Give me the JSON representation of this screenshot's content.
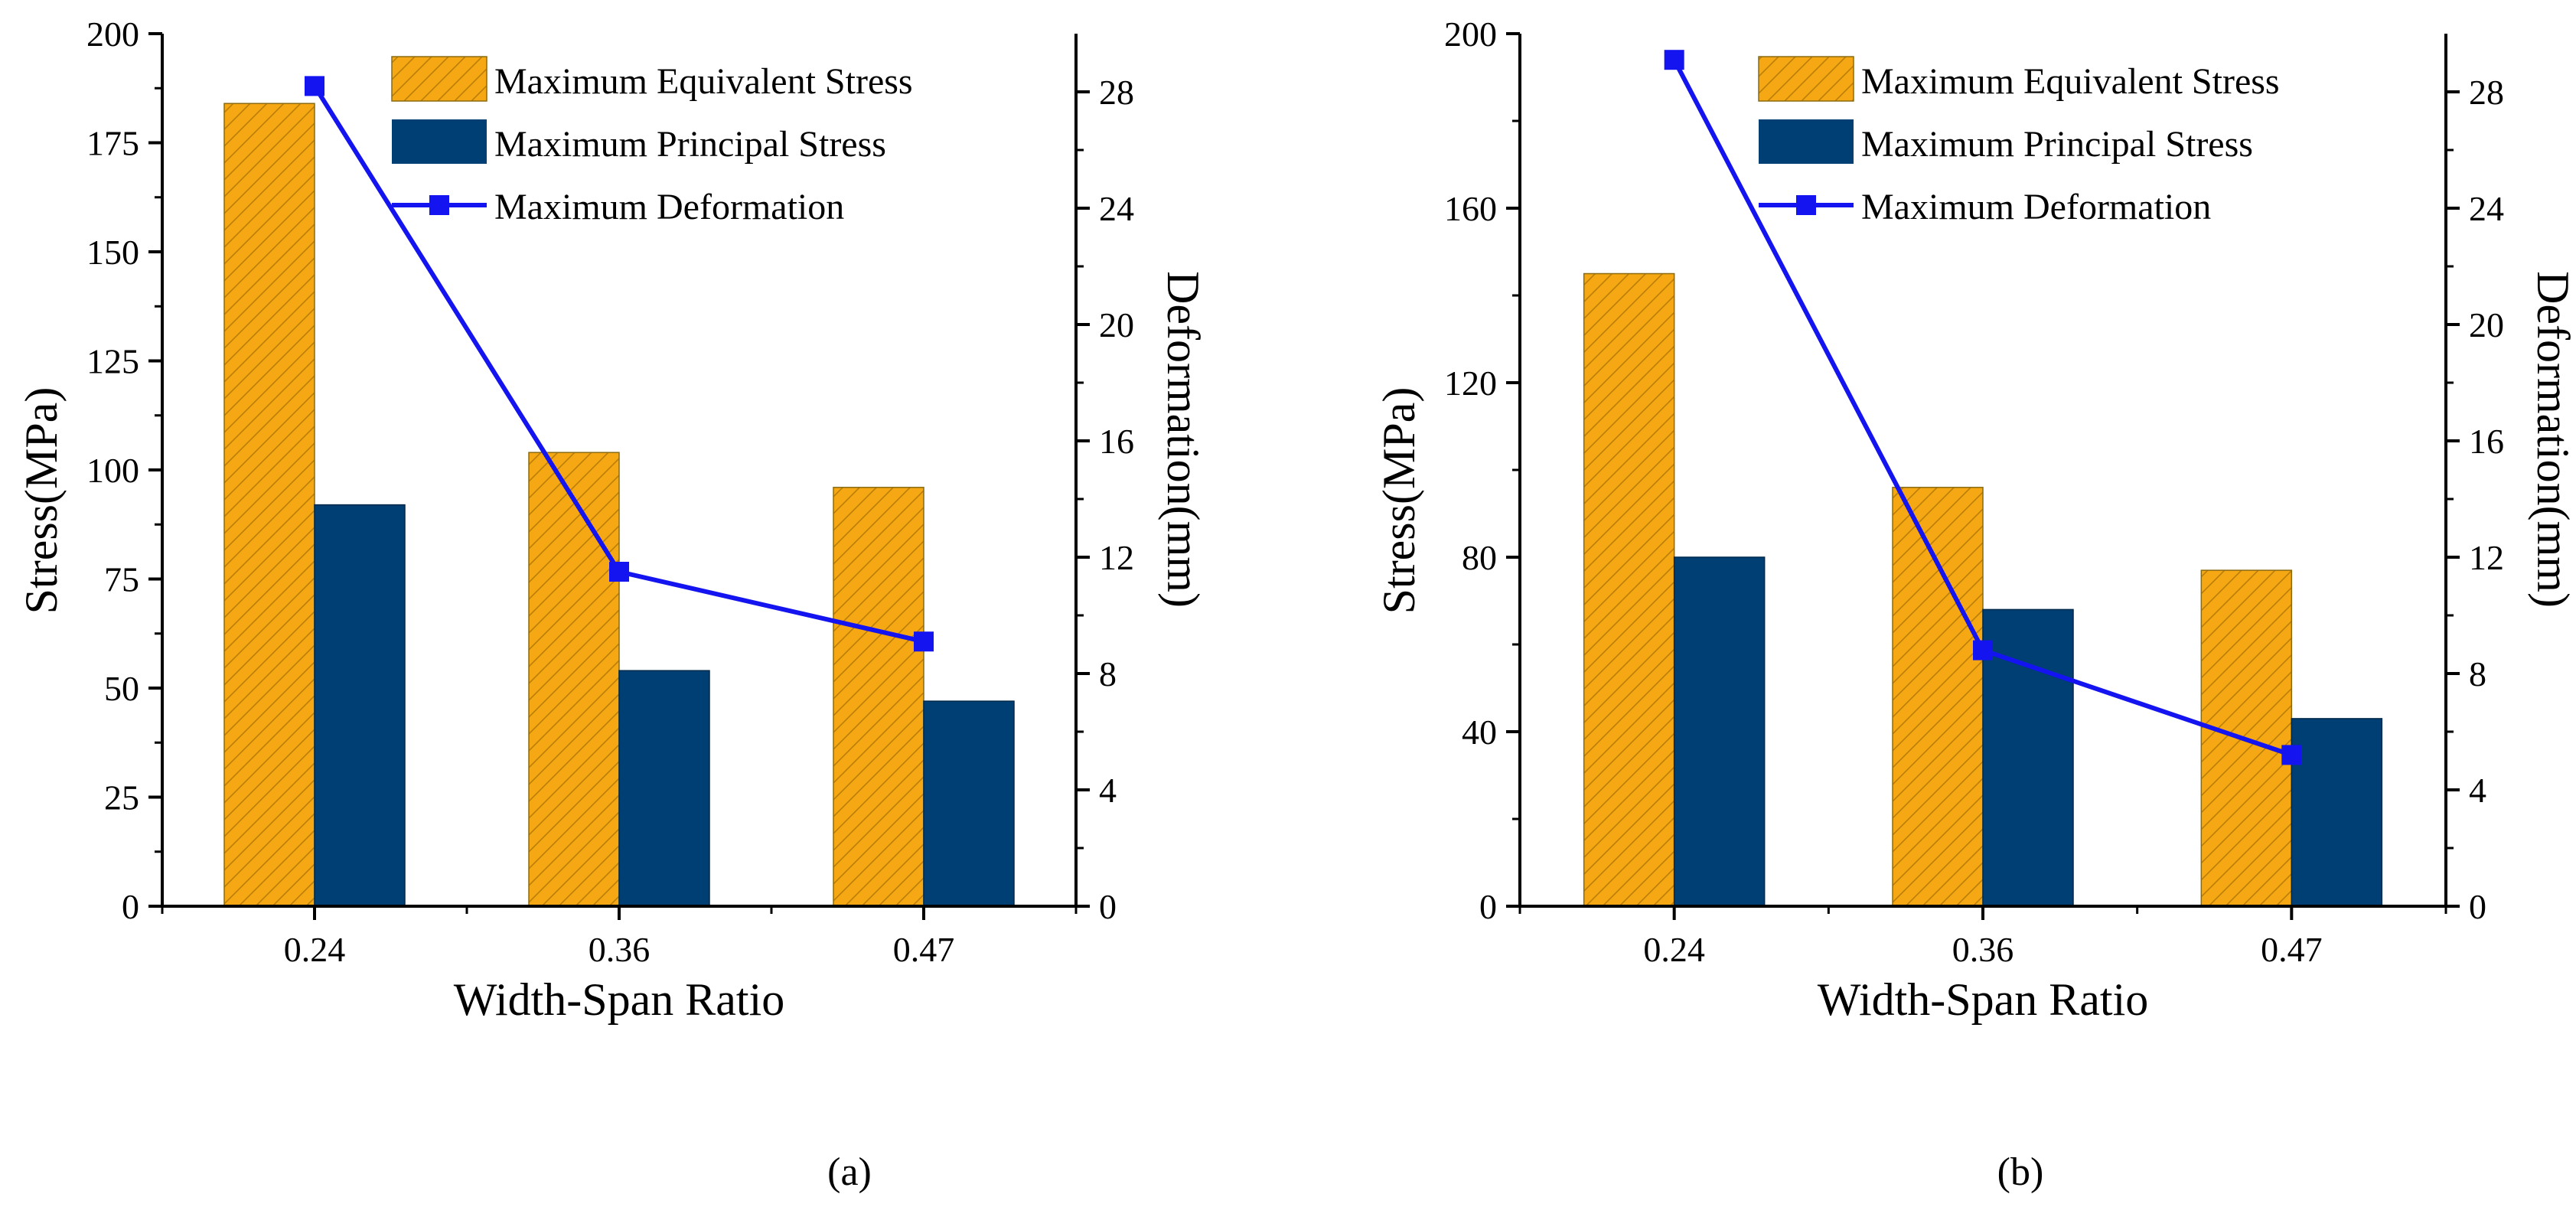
{
  "chart_data": [
    {
      "type": "bar",
      "panel_label": "(a)",
      "xlabel": "Width-Span Ratio",
      "ylabel": "Stress(MPa)",
      "y2label": "Deformation(mm)",
      "categories": [
        "0.24",
        "0.36",
        "0.47"
      ],
      "ylim": [
        0,
        200
      ],
      "yticks": [
        0,
        25,
        50,
        75,
        100,
        125,
        150,
        175,
        200
      ],
      "y2lim": [
        0,
        30
      ],
      "y2ticks": [
        0,
        4,
        8,
        12,
        16,
        20,
        24,
        28
      ],
      "series": [
        {
          "name": "Maximum Equivalent Stress",
          "kind": "bar",
          "color": "#F5A814",
          "hatch": true,
          "values": [
            184,
            104,
            96
          ]
        },
        {
          "name": "Maximum Principal Stress",
          "kind": "bar",
          "color": "#003F73",
          "hatch": false,
          "values": [
            92,
            54,
            47
          ]
        },
        {
          "name": "Maximum Deformation",
          "kind": "line",
          "axis": "right",
          "color": "#1414F0",
          "marker": "square",
          "values": [
            28.2,
            11.5,
            9.1
          ]
        }
      ],
      "legend_position": "top-right"
    },
    {
      "type": "bar",
      "panel_label": "(b)",
      "xlabel": "Width-Span Ratio",
      "ylabel": "Stress(MPa)",
      "y2label": "Deformation(mm)",
      "categories": [
        "0.24",
        "0.36",
        "0.47"
      ],
      "ylim": [
        0,
        200
      ],
      "yticks": [
        0,
        40,
        80,
        120,
        160,
        200
      ],
      "y2lim": [
        0,
        30
      ],
      "y2ticks": [
        0,
        4,
        8,
        12,
        16,
        20,
        24,
        28
      ],
      "series": [
        {
          "name": "Maximum Equivalent Stress",
          "kind": "bar",
          "color": "#F5A814",
          "hatch": true,
          "values": [
            145,
            96,
            77
          ]
        },
        {
          "name": "Maximum Principal Stress",
          "kind": "bar",
          "color": "#003F73",
          "hatch": false,
          "values": [
            80,
            68,
            43
          ]
        },
        {
          "name": "Maximum Deformation",
          "kind": "line",
          "axis": "right",
          "color": "#1414F0",
          "marker": "square",
          "values": [
            29.1,
            8.8,
            5.2
          ]
        }
      ],
      "legend_position": "top-right"
    }
  ]
}
